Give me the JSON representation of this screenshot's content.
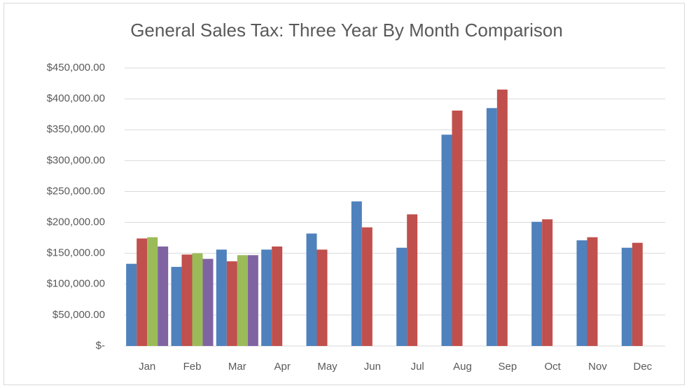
{
  "chart_data": {
    "type": "bar",
    "title": "General Sales Tax: Three Year By Month Comparison",
    "categories": [
      "Jan",
      "Feb",
      "Mar",
      "Apr",
      "May",
      "Jun",
      "Jul",
      "Aug",
      "Sep",
      "Oct",
      "Nov",
      "Dec"
    ],
    "series": [
      {
        "color": "#4f81bd",
        "values": [
          133000,
          128000,
          156000,
          156000,
          182000,
          234000,
          159000,
          342000,
          385000,
          201000,
          171000,
          159000
        ]
      },
      {
        "color": "#c0504d",
        "values": [
          174000,
          148000,
          137000,
          161000,
          156000,
          192000,
          213000,
          381000,
          415000,
          205000,
          176000,
          167000
        ]
      },
      {
        "color": "#9bbb59",
        "values": [
          176000,
          150000,
          147000,
          null,
          null,
          null,
          null,
          null,
          null,
          null,
          null,
          null
        ]
      },
      {
        "color": "#8064a2",
        "values": [
          161000,
          141000,
          147000,
          null,
          null,
          null,
          null,
          null,
          null,
          null,
          null,
          null
        ]
      }
    ],
    "ylim": [
      0,
      450000
    ],
    "yticks": [
      {
        "value": 0,
        "label": "$-"
      },
      {
        "value": 50000,
        "label": "$50,000.00"
      },
      {
        "value": 100000,
        "label": "$100,000.00"
      },
      {
        "value": 150000,
        "label": "$150,000.00"
      },
      {
        "value": 200000,
        "label": "$200,000.00"
      },
      {
        "value": 250000,
        "label": "$250,000.00"
      },
      {
        "value": 300000,
        "label": "$300,000.00"
      },
      {
        "value": 350000,
        "label": "$350,000.00"
      },
      {
        "value": 400000,
        "label": "$400,000.00"
      },
      {
        "value": 450000,
        "label": "$450,000.00"
      }
    ],
    "grid": true
  }
}
